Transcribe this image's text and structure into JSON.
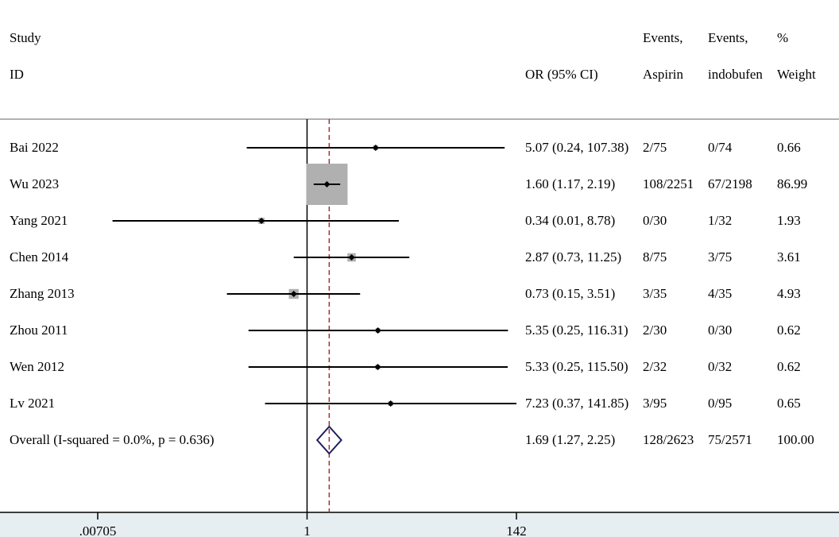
{
  "header": {
    "study_l1": "Study",
    "study_l2": "ID",
    "or_label": "OR (95% CI)",
    "events_aspirin_l1": "Events,",
    "events_aspirin_l2": "Aspirin",
    "events_indobufen_l1": "Events,",
    "events_indobufen_l2": "indobufen",
    "weight_l1": "%",
    "weight_l2": "Weight"
  },
  "chart_data": {
    "type": "forest",
    "xscale": "log",
    "xlim": [
      0.00705,
      142
    ],
    "xticks": [
      {
        "value": 0.00705,
        "label": ".00705"
      },
      {
        "value": 1,
        "label": "1"
      },
      {
        "value": 142,
        "label": "142"
      }
    ],
    "null_line": 1,
    "overall_line": 1.69,
    "studies": [
      {
        "id": "Bai 2022",
        "or": 5.07,
        "lo": 0.24,
        "hi": 107.38,
        "or_text": "5.07 (0.24, 107.38)",
        "aspirin": "2/75",
        "indobufen": "0/74",
        "weight": 0.66,
        "weight_text": "0.66"
      },
      {
        "id": "Wu 2023",
        "or": 1.6,
        "lo": 1.17,
        "hi": 2.19,
        "or_text": "1.60 (1.17, 2.19)",
        "aspirin": "108/2251",
        "indobufen": "67/2198",
        "weight": 86.99,
        "weight_text": "86.99"
      },
      {
        "id": "Yang 2021",
        "or": 0.34,
        "lo": 0.01,
        "hi": 8.78,
        "or_text": "0.34 (0.01, 8.78)",
        "aspirin": "0/30",
        "indobufen": "1/32",
        "weight": 1.93,
        "weight_text": "1.93"
      },
      {
        "id": "Chen 2014",
        "or": 2.87,
        "lo": 0.73,
        "hi": 11.25,
        "or_text": "2.87 (0.73, 11.25)",
        "aspirin": "8/75",
        "indobufen": "3/75",
        "weight": 3.61,
        "weight_text": "3.61"
      },
      {
        "id": "Zhang 2013",
        "or": 0.73,
        "lo": 0.15,
        "hi": 3.51,
        "or_text": "0.73 (0.15, 3.51)",
        "aspirin": "3/35",
        "indobufen": "4/35",
        "weight": 4.93,
        "weight_text": "4.93"
      },
      {
        "id": "Zhou 2011",
        "or": 5.35,
        "lo": 0.25,
        "hi": 116.31,
        "or_text": "5.35 (0.25, 116.31)",
        "aspirin": "2/30",
        "indobufen": "0/30",
        "weight": 0.62,
        "weight_text": "0.62"
      },
      {
        "id": "Wen 2012",
        "or": 5.33,
        "lo": 0.25,
        "hi": 115.5,
        "or_text": "5.33 (0.25, 115.50)",
        "aspirin": "2/32",
        "indobufen": "0/32",
        "weight": 0.62,
        "weight_text": "0.62"
      },
      {
        "id": "Lv 2021",
        "or": 7.23,
        "lo": 0.37,
        "hi": 141.85,
        "or_text": "7.23 (0.37, 141.85)",
        "aspirin": "3/95",
        "indobufen": "0/95",
        "weight": 0.65,
        "weight_text": "0.65"
      }
    ],
    "overall": {
      "id": "Overall  (I-squared = 0.0%, p = 0.636)",
      "or": 1.69,
      "lo": 1.27,
      "hi": 2.25,
      "or_text": "1.69 (1.27, 2.25)",
      "aspirin": "128/2623",
      "indobufen": "75/2571",
      "weight_text": "100.00"
    },
    "colors": {
      "box": "#b0b0b0",
      "diamond": "#1f1f5c",
      "overall_line": "#a03030",
      "line": "#000000"
    }
  }
}
